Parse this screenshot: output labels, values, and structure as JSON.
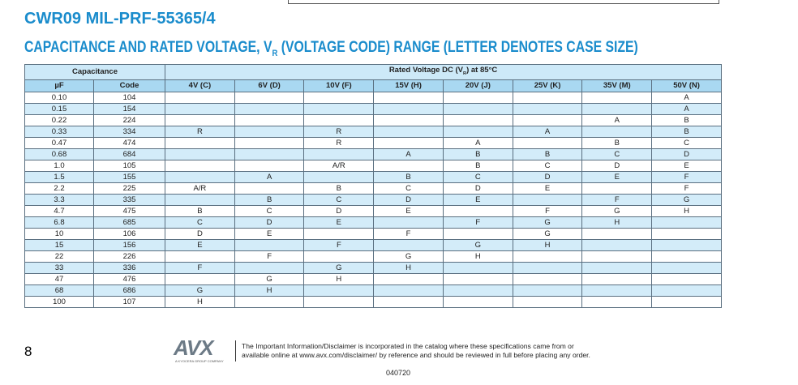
{
  "header": {
    "title": "CWR09 MIL-PRF-55365/4",
    "subtitle": [
      "CAPACITANCE AND RATED VOLTAGE, V",
      "R",
      " (VOLTAGE CODE) RANGE (LETTER DENOTES CASE SIZE)"
    ]
  },
  "table": {
    "group_headers": {
      "capacitance": "Capacitance",
      "voltage": [
        "Rated Voltage DC (V",
        "R",
        ") at 85°C"
      ]
    },
    "columns": [
      "µF",
      "Code",
      "4V (C)",
      "6V (D)",
      "10V (F)",
      "15V (H)",
      "20V (J)",
      "25V (K)",
      "35V (M)",
      "50V (N)"
    ],
    "rows": [
      [
        "0.10",
        "104",
        null,
        null,
        null,
        null,
        null,
        null,
        null,
        "A"
      ],
      [
        "0.15",
        "154",
        null,
        null,
        null,
        null,
        null,
        null,
        null,
        "A"
      ],
      [
        "0.22",
        "224",
        null,
        null,
        null,
        null,
        null,
        null,
        "A",
        "B"
      ],
      [
        "0.33",
        "334",
        "R",
        null,
        "R",
        null,
        null,
        "A",
        null,
        "B"
      ],
      [
        "0.47",
        "474",
        null,
        null,
        "R",
        null,
        "A",
        null,
        "B",
        "C"
      ],
      [
        "0.68",
        "684",
        null,
        null,
        null,
        "A",
        "B",
        "B",
        "C",
        "D"
      ],
      [
        "1.0",
        "105",
        null,
        null,
        "A/R",
        null,
        "B",
        "C",
        "D",
        "E"
      ],
      [
        "1.5",
        "155",
        null,
        "A",
        null,
        "B",
        "C",
        "D",
        "E",
        "F"
      ],
      [
        "2.2",
        "225",
        "A/R",
        null,
        "B",
        "C",
        "D",
        "E",
        null,
        "F"
      ],
      [
        "3.3",
        "335",
        null,
        "B",
        "C",
        "D",
        "E",
        null,
        "F",
        "G"
      ],
      [
        "4.7",
        "475",
        "B",
        "C",
        "D",
        "E",
        null,
        "F",
        "G",
        "H"
      ],
      [
        "6.8",
        "685",
        "C",
        "D",
        "E",
        null,
        "F",
        "G",
        "H",
        null
      ],
      [
        "10",
        "106",
        "D",
        "E",
        null,
        "F",
        null,
        "G",
        null,
        null
      ],
      [
        "15",
        "156",
        "E",
        null,
        "F",
        null,
        "G",
        "H",
        null,
        null
      ],
      [
        "22",
        "226",
        null,
        "F",
        null,
        "G",
        "H",
        null,
        null,
        null
      ],
      [
        "33",
        "336",
        "F",
        null,
        "G",
        "H",
        null,
        null,
        null,
        null
      ],
      [
        "47",
        "476",
        null,
        "G",
        "H",
        null,
        null,
        null,
        null,
        null
      ],
      [
        "68",
        "686",
        "G",
        "H",
        null,
        null,
        null,
        null,
        null,
        null
      ],
      [
        "100",
        "107",
        "H",
        null,
        null,
        null,
        null,
        null,
        null,
        null
      ]
    ]
  },
  "footer": {
    "page": "8",
    "logo": "AVX",
    "logo_tagline": "A KYOCERA GROUP COMPANY",
    "disclaimer": [
      "The Important Information/Disclaimer is incorporated in the catalog where these specifications came from or",
      "available online at www.avx.com/disclaimer/ by reference and should be reviewed in full before placing any order."
    ],
    "code": "040720"
  }
}
